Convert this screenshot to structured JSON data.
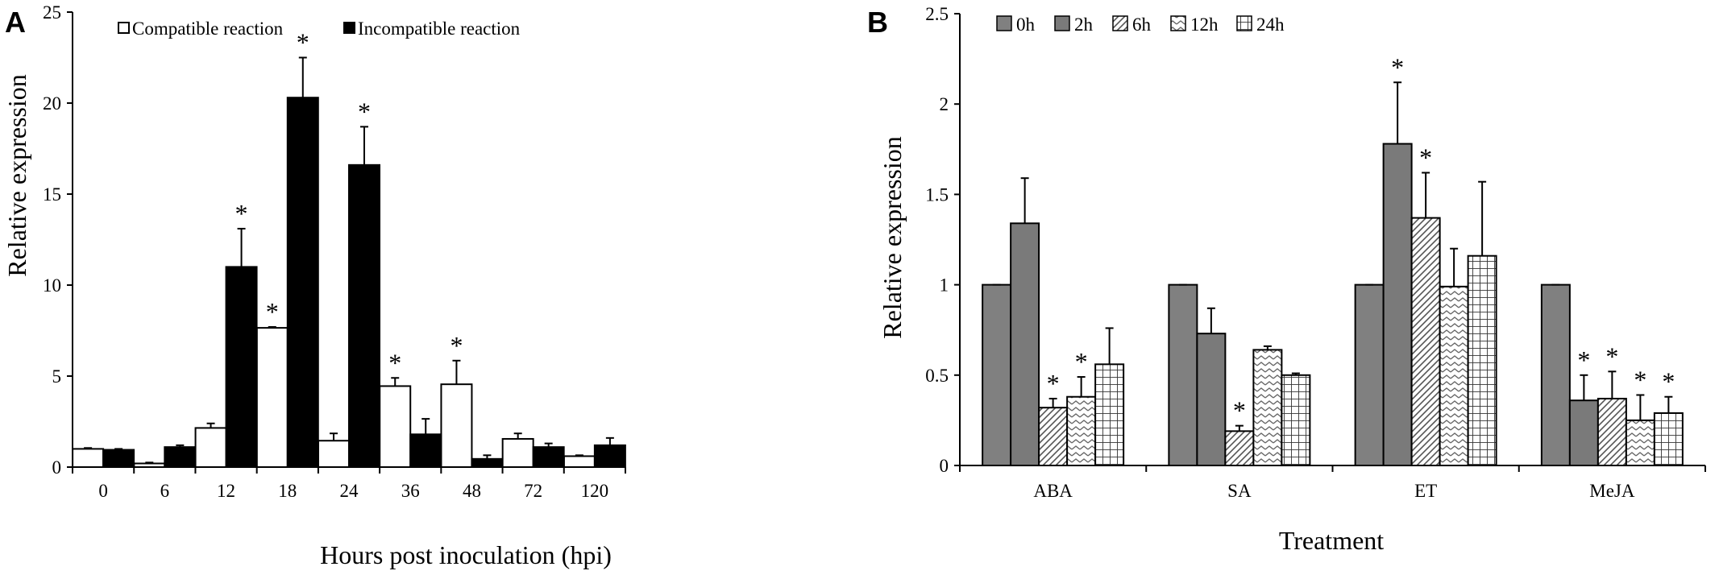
{
  "chart_data": [
    {
      "panel_label": "A",
      "type": "bar",
      "title": "",
      "xlabel": "Hours post inoculation (hpi)",
      "ylabel": "Relative expression",
      "ylim": [
        0,
        25
      ],
      "yticks": [
        0,
        5,
        10,
        15,
        20,
        25
      ],
      "categories": [
        "0",
        "6",
        "12",
        "18",
        "24",
        "36",
        "48",
        "72",
        "120"
      ],
      "series": [
        {
          "name": "Compatible reaction",
          "color": "#ffffff",
          "values": [
            1.0,
            0.2,
            2.15,
            7.65,
            1.45,
            4.45,
            4.55,
            1.55,
            0.6
          ],
          "errors": [
            0.05,
            0.05,
            0.25,
            0.05,
            0.4,
            0.45,
            1.3,
            0.3,
            0.05
          ],
          "significant": [
            false,
            false,
            false,
            true,
            false,
            true,
            true,
            false,
            false
          ]
        },
        {
          "name": "Incompatible reaction",
          "color": "#000000",
          "values": [
            0.95,
            1.1,
            11.0,
            20.3,
            16.6,
            1.8,
            0.45,
            1.1,
            1.2
          ],
          "errors": [
            0.05,
            0.1,
            2.1,
            2.2,
            2.1,
            0.85,
            0.2,
            0.2,
            0.4
          ],
          "significant": [
            false,
            false,
            true,
            true,
            true,
            false,
            false,
            false,
            false
          ]
        }
      ],
      "significance_mark": "*"
    },
    {
      "panel_label": "B",
      "type": "bar",
      "title": "",
      "xlabel": "Treatment",
      "ylabel": "Relative expression",
      "ylim": [
        0,
        2.5
      ],
      "yticks": [
        0,
        0.5,
        1,
        1.5,
        2,
        2.5
      ],
      "ytick_labels": [
        "0",
        "0.5",
        "1",
        "1.5",
        "2",
        "2.5"
      ],
      "categories": [
        "ABA",
        "SA",
        "ET",
        "MeJA"
      ],
      "series": [
        {
          "name": "0h",
          "pattern": "solid-gray",
          "values": [
            1.0,
            1.0,
            1.0,
            1.0
          ],
          "errors": [
            0.0,
            0.0,
            0.0,
            0.0
          ],
          "significant": [
            false,
            false,
            false,
            false
          ]
        },
        {
          "name": "2h",
          "pattern": "solid-gray-dark",
          "values": [
            1.34,
            0.73,
            1.78,
            0.36
          ],
          "errors": [
            0.25,
            0.14,
            0.34,
            0.14
          ],
          "significant": [
            false,
            false,
            true,
            true
          ]
        },
        {
          "name": "6h",
          "pattern": "diagonal",
          "values": [
            0.32,
            0.19,
            1.37,
            0.37
          ],
          "errors": [
            0.05,
            0.03,
            0.25,
            0.15
          ],
          "significant": [
            true,
            true,
            true,
            true
          ]
        },
        {
          "name": "12h",
          "pattern": "zigzag",
          "values": [
            0.38,
            0.64,
            0.99,
            0.25
          ],
          "errors": [
            0.11,
            0.02,
            0.21,
            0.14
          ],
          "significant": [
            true,
            false,
            false,
            true
          ]
        },
        {
          "name": "24h",
          "pattern": "grid",
          "values": [
            0.56,
            0.5,
            1.16,
            0.29
          ],
          "errors": [
            0.2,
            0.01,
            0.41,
            0.09
          ],
          "significant": [
            false,
            false,
            false,
            true
          ]
        }
      ],
      "significance_mark": "*"
    }
  ]
}
